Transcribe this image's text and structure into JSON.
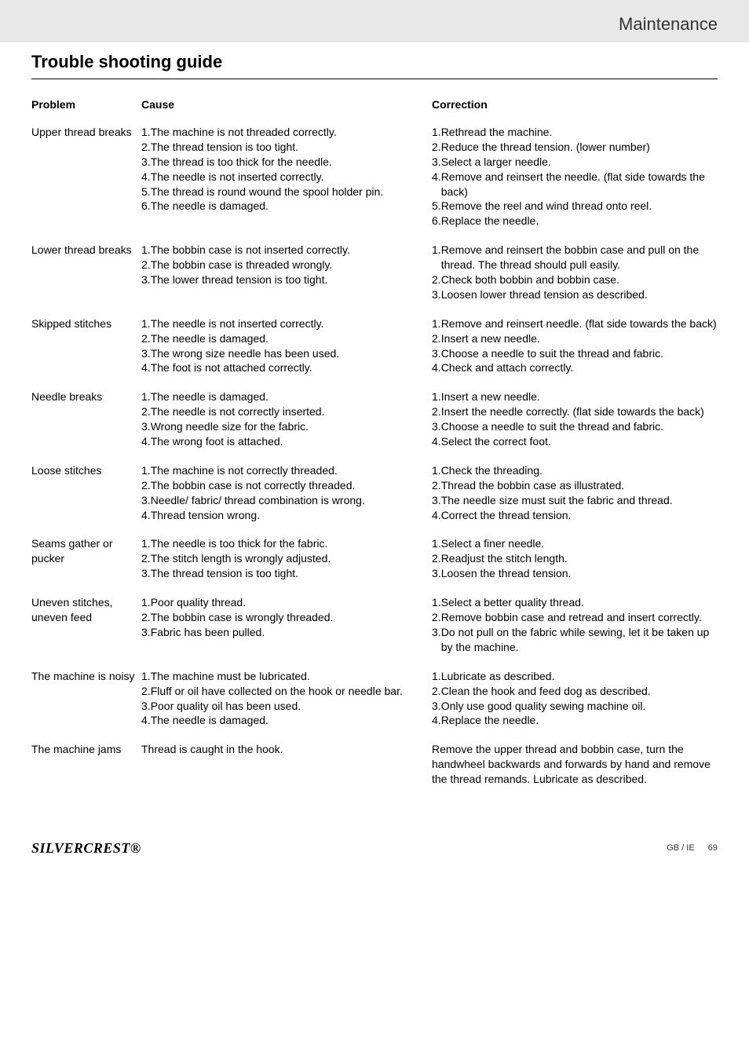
{
  "header": {
    "section_title": "Maintenance"
  },
  "page": {
    "title": "Trouble shooting guide"
  },
  "table": {
    "headers": {
      "problem": "Problem",
      "cause": "Cause",
      "correction": "Correction"
    },
    "rows": [
      {
        "problem": "Upper thread breaks",
        "causes": [
          "1. The machine is not threaded correctly.",
          "2. The thread tension is too tight.",
          "3. The thread is too thick for the needle.",
          "4. The needle is not inserted correctly.",
          "5. The thread is round wound the spool holder pin.",
          "6. The needle is damaged."
        ],
        "corrections": [
          "1. Rethread the machine.",
          "2. Reduce the thread tension. (lower number)",
          "3. Select a larger needle.",
          "4. Remove and reinsert the needle. (flat side towards the back)",
          "5. Remove the reel and wind thread onto reel.",
          "6. Replace the needle."
        ]
      },
      {
        "problem": "Lower thread breaks",
        "causes": [
          "1. The bobbin case is not inserted correctly.",
          "2. The bobbin case is threaded wrongly.",
          "3. The lower thread tension is too tight."
        ],
        "corrections": [
          "1. Remove and reinsert the bobbin case and pull on the thread. The thread should pull easily.",
          "2. Check both bobbin and bobbin case.",
          "3. Loosen lower thread tension as described."
        ]
      },
      {
        "problem": "Skipped stitches",
        "causes": [
          "1. The needle is not inserted correctly.",
          "2. The needle is damaged.",
          "3. The wrong size needle has been used.",
          "4. The foot is not attached correctly."
        ],
        "corrections": [
          "1. Remove and reinsert needle. (flat side towards the back)",
          "2. Insert a new needle.",
          "3. Choose a needle to suit the thread and fabric.",
          "4. Check and attach correctly."
        ]
      },
      {
        "problem": "Needle breaks",
        "causes": [
          "1. The needle is damaged.",
          "2. The needle is not correctly inserted.",
          "3. Wrong needle size for the fabric.",
          "4. The wrong foot is attached."
        ],
        "corrections": [
          "1. Insert a new needle.",
          "2. Insert the needle correctly. (flat side towards the back)",
          "3. Choose a needle to suit the thread and fabric.",
          "4. Select the correct foot."
        ]
      },
      {
        "problem": "Loose stitches",
        "causes": [
          "1. The machine is not correctly threaded.",
          "2. The bobbin case is not correctly threaded.",
          "3. Needle/ fabric/ thread combination is wrong.",
          "4. Thread tension wrong."
        ],
        "corrections": [
          "1. Check the threading.",
          "2. Thread the bobbin case as illustrated.",
          "3. The needle size must suit the fabric and thread.",
          "4. Correct the thread tension."
        ]
      },
      {
        "problem": "Seams gather or pucker",
        "causes": [
          "1. The needle is too thick for the fabric.",
          "2. The stitch length is wrongly adjusted.",
          "3. The thread tension is too tight."
        ],
        "corrections": [
          "1. Select a finer needle.",
          "2. Readjust the stitch length.",
          "3. Loosen the thread tension."
        ]
      },
      {
        "problem": "Uneven stitches, uneven feed",
        "causes": [
          "1. Poor quality thread.",
          "2. The bobbin case is wrongly threaded.",
          "3. Fabric has been pulled."
        ],
        "corrections": [
          "1. Select a better quality thread.",
          "2. Remove bobbin case and retread and insert correctly.",
          "3. Do not pull on the fabric while sewing, let it be taken up by the machine."
        ]
      },
      {
        "problem": "The machine is noisy",
        "causes": [
          "1. The machine must be lubricated.",
          "2. Fluff or oil have collected on the hook or needle bar.",
          "3. Poor quality oil has been used.",
          "4. The needle is damaged."
        ],
        "corrections": [
          "1. Lubricate as described.",
          "2. Clean the hook and feed dog as described.",
          "3. Only use good quality sewing machine oil.",
          "4. Replace the needle."
        ]
      },
      {
        "problem": "The machine jams",
        "causes": [
          "Thread is caught in the hook."
        ],
        "corrections": [
          "Remove the upper thread and bobbin case, turn the handwheel backwards and forwards by hand and remove the thread remands. Lubricate as described."
        ]
      }
    ]
  },
  "footer": {
    "logo_part1": "SILVER",
    "logo_part2": "CREST",
    "logo_symbol": "®",
    "region": "GB / IE",
    "page_number": "69"
  },
  "style": {
    "background": "#ffffff",
    "header_bg": "#e8e8e8",
    "text_color": "#000000",
    "font_body": "14",
    "font_title": "22"
  }
}
